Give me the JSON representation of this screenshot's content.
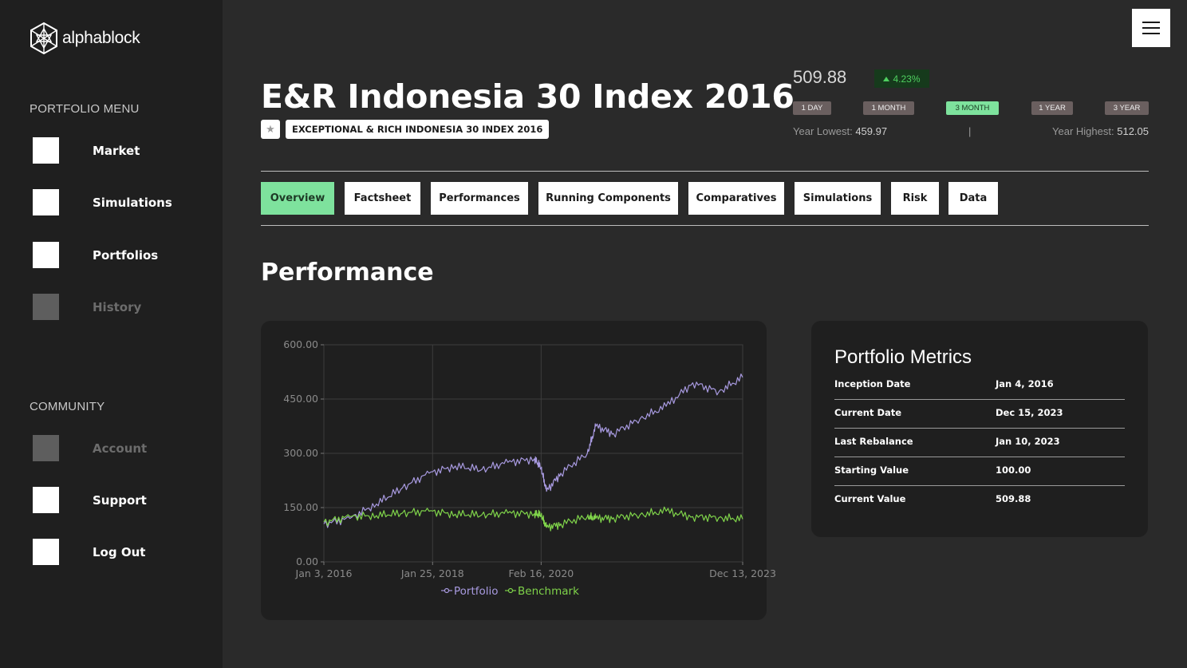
{
  "app": {
    "name": "alphablock"
  },
  "sidebar": {
    "portfolio_menu_title": "PORTFOLIO MENU",
    "portfolio_items": [
      {
        "label": "Market",
        "enabled": true
      },
      {
        "label": "Simulations",
        "enabled": true
      },
      {
        "label": "Portfolios",
        "enabled": true
      },
      {
        "label": "History",
        "enabled": false
      }
    ],
    "community_title": "COMMUNITY",
    "community_items": [
      {
        "label": "Account",
        "enabled": false
      },
      {
        "label": "Support",
        "enabled": true
      },
      {
        "label": "Log Out",
        "enabled": true
      }
    ]
  },
  "header": {
    "title": "E&R Indonesia 30 Index 2016",
    "subtitle": "EXCEPTIONAL & RICH INDONESIA 30 INDEX 2016",
    "star_icon": "star-icon"
  },
  "quote": {
    "price": "509.88",
    "change": "4.23%",
    "change_color": "#4fd060",
    "ranges": [
      {
        "label": "1 DAY",
        "active": false
      },
      {
        "label": "1 MONTH",
        "active": false
      },
      {
        "label": "3 MONTH",
        "active": true
      },
      {
        "label": "1 YEAR",
        "active": false
      },
      {
        "label": "3 YEAR",
        "active": false
      }
    ],
    "year_lowest_label": "Year Lowest:",
    "year_lowest_value": "459.97",
    "year_highest_label": "Year Highest:",
    "year_highest_value": "512.05"
  },
  "tabs": [
    {
      "label": "Overview",
      "active": true
    },
    {
      "label": "Factsheet",
      "active": false
    },
    {
      "label": "Performances",
      "active": false
    },
    {
      "label": "Running Components",
      "active": false
    },
    {
      "label": "Comparatives",
      "active": false
    },
    {
      "label": "Simulations",
      "active": false
    },
    {
      "label": "Risk",
      "active": false
    },
    {
      "label": "Data",
      "active": false
    }
  ],
  "section_title": "Performance",
  "chart_data": {
    "type": "line",
    "title": "",
    "xlabel": "",
    "ylabel": "",
    "ylim": [
      0,
      600
    ],
    "y_ticks": [
      "0.00",
      "150.00",
      "300.00",
      "450.00",
      "600.00"
    ],
    "x_tick_labels": [
      "Jan 3, 2016",
      "Jan 25, 2018",
      "Feb 16, 2020",
      "Dec 13, 2023"
    ],
    "x_tick_dates": [
      "2016-01-03",
      "2018-01-25",
      "2020-02-16",
      "2023-12-13"
    ],
    "grid": true,
    "legend_position": "bottom",
    "x": [
      "2016-01-03",
      "2016-07-01",
      "2017-01-01",
      "2017-07-01",
      "2018-01-01",
      "2018-07-01",
      "2019-01-01",
      "2019-07-01",
      "2020-01-01",
      "2020-02-16",
      "2020-03-24",
      "2020-07-01",
      "2021-01-01",
      "2021-03-01",
      "2021-07-01",
      "2022-01-01",
      "2022-07-01",
      "2023-01-01",
      "2023-07-01",
      "2023-12-13"
    ],
    "series": [
      {
        "name": "Portfolio",
        "color": "#a89ae0",
        "values": [
          105,
          120,
          160,
          205,
          245,
          265,
          255,
          275,
          285,
          260,
          195,
          245,
          300,
          375,
          355,
          395,
          430,
          495,
          470,
          510
        ]
      },
      {
        "name": "Benchmark",
        "color": "#7fd34a",
        "values": [
          110,
          125,
          128,
          135,
          140,
          132,
          130,
          135,
          133,
          130,
          95,
          105,
          125,
          120,
          122,
          130,
          140,
          125,
          122,
          118
        ]
      }
    ]
  },
  "metrics": {
    "title": "Portfolio Metrics",
    "rows": [
      {
        "label": "Inception Date",
        "value": "Jan 4, 2016"
      },
      {
        "label": "Current Date",
        "value": "Dec 15, 2023"
      },
      {
        "label": "Last Rebalance",
        "value": "Jan 10, 2023"
      },
      {
        "label": "Starting Value",
        "value": "100.00"
      },
      {
        "label": "Current Value",
        "value": "509.88"
      }
    ]
  }
}
